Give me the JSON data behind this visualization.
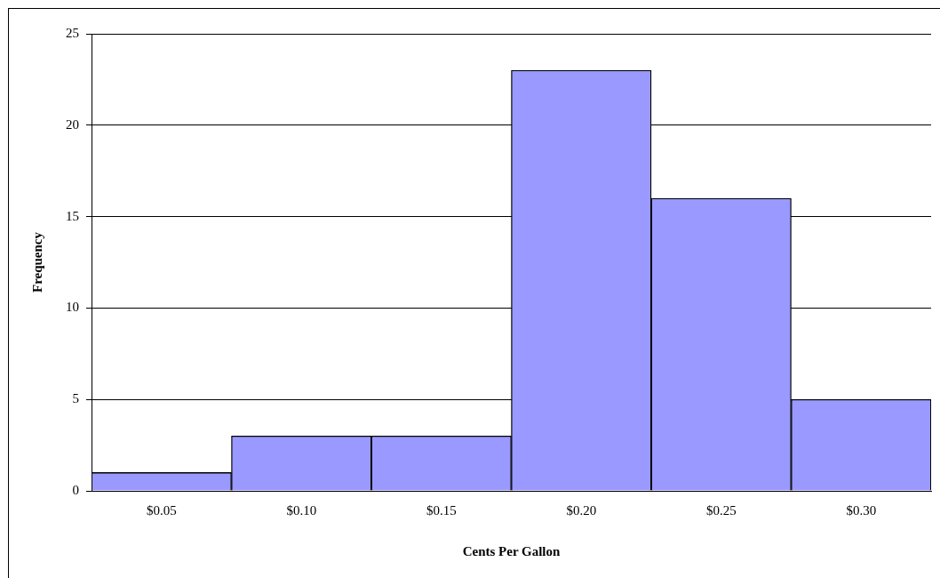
{
  "chart_data": {
    "type": "bar",
    "xlabel": "Cents Per Gallon",
    "ylabel": "Frequency",
    "categories": [
      "$0.05",
      "$0.10",
      "$0.15",
      "$0.20",
      "$0.25",
      "$0.30"
    ],
    "values": [
      1,
      3,
      3,
      23,
      16,
      5
    ],
    "color": "#9999ff",
    "ylim": [
      0,
      25
    ],
    "yticks": [
      0,
      5,
      10,
      15,
      20,
      25
    ],
    "grid": "y"
  }
}
